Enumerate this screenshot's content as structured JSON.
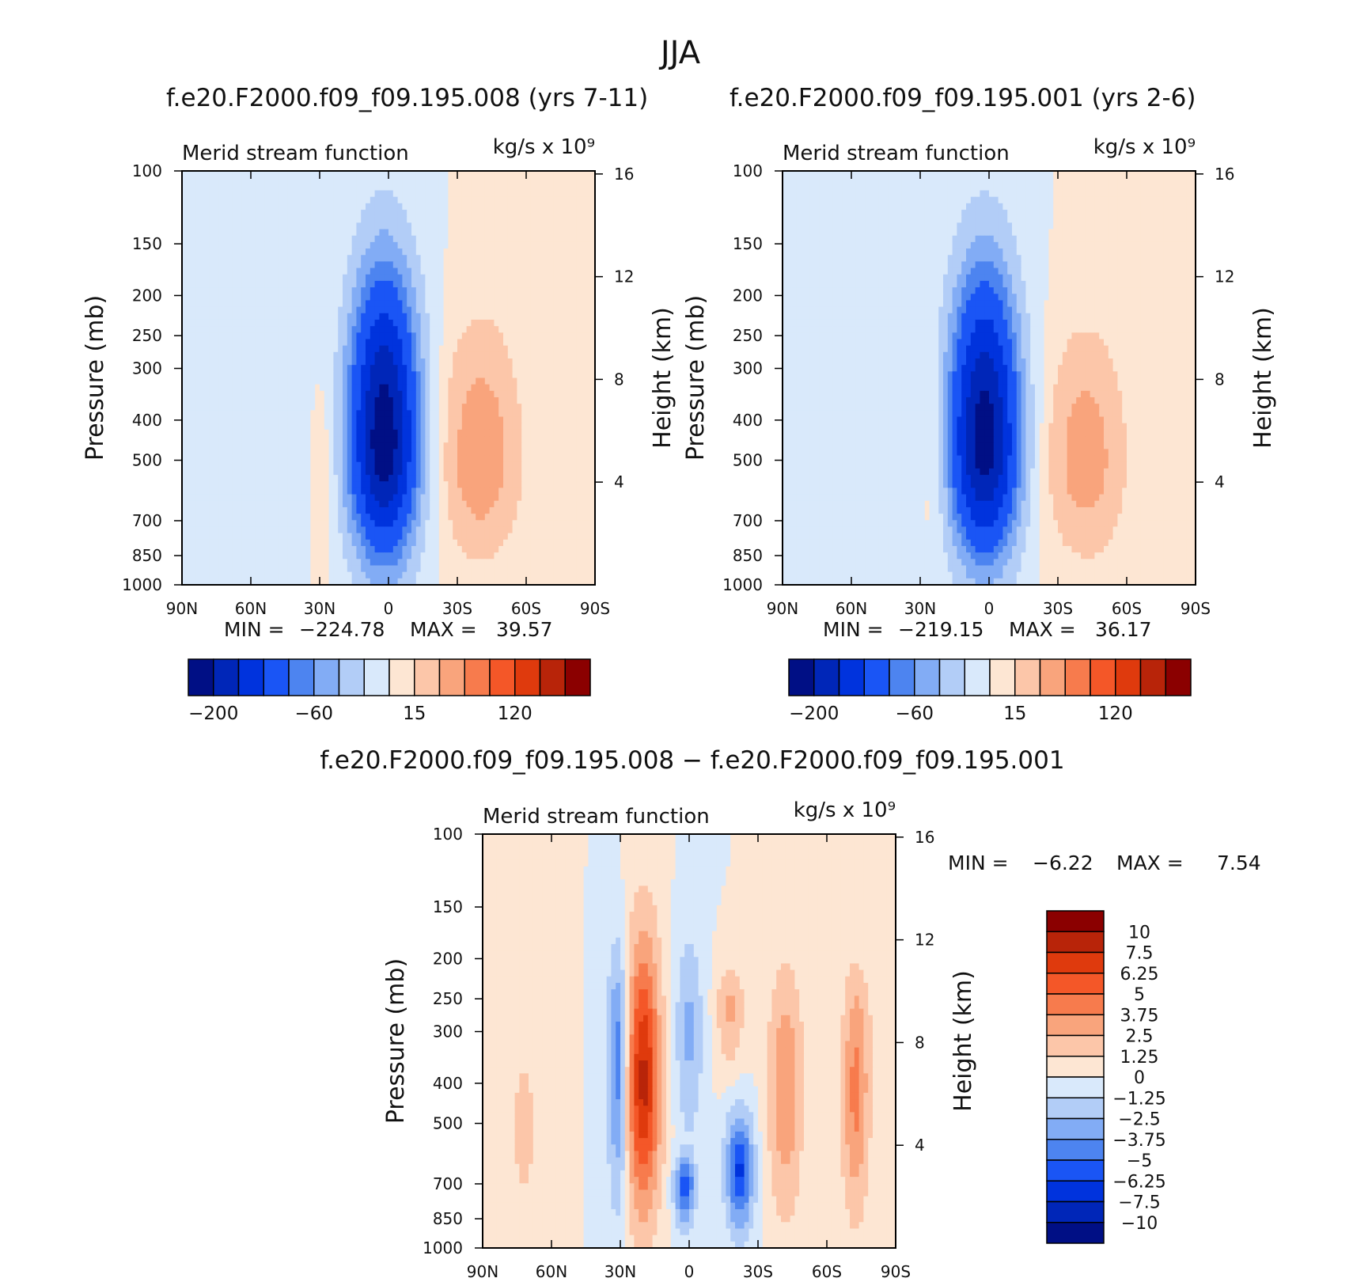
{
  "figure_title": "JJA",
  "colors": {
    "blue_scale": [
      "#000f85",
      "#0026b8",
      "#0033dd",
      "#1a55f5",
      "#4d84f0",
      "#82acf5",
      "#b2cdf7",
      "#d9e9fb"
    ],
    "red_scale": [
      "#fde6d3",
      "#fcc6a9",
      "#f9a47c",
      "#f77b4d",
      "#f45728",
      "#df3a0d",
      "#b82409",
      "#8b0000"
    ]
  },
  "chart_data": [
    {
      "id": "panel-008",
      "type": "heatmap",
      "title": "f.e20.F2000.f09_f09.195.008 (yrs 7-11)",
      "subtitle": "Merid stream function",
      "units": "kg/s x 10⁹",
      "xlabel": "",
      "ylabel": "Pressure (mb)",
      "y2label": "Height (km)",
      "x_ticks": [
        "90N",
        "60N",
        "30N",
        "0",
        "30S",
        "60S",
        "90S"
      ],
      "y_ticks": [
        100,
        150,
        200,
        250,
        300,
        400,
        500,
        700,
        850,
        1000
      ],
      "y2_ticks": [
        4,
        8,
        12,
        16
      ],
      "ylim": [
        1000,
        100
      ],
      "y_scale": "log",
      "min": -224.78,
      "max": 39.57,
      "min_label": "MIN =",
      "max_label": "MAX =",
      "min_text": "−224.78",
      "max_text": "39.57",
      "colorbar_labels": [
        "−200",
        "−60",
        "15",
        "120"
      ],
      "features": [
        {
          "kind": "neg",
          "lat": 2,
          "p": 450,
          "peak": -224.78,
          "w": 10,
          "p_top": 150,
          "p_bot": 960
        },
        {
          "kind": "neg",
          "lat": 52,
          "p": 400,
          "peak": -12,
          "w": 10,
          "p_top": 130,
          "p_bot": 950
        },
        {
          "kind": "pos",
          "lat": -40,
          "p": 500,
          "peak": 39.57,
          "w": 12,
          "p_top": 200,
          "p_bot": 950
        },
        {
          "kind": "pos",
          "lat": 28,
          "p": 500,
          "peak": 12,
          "w": 4,
          "p_top": 280,
          "p_bot": 950
        }
      ]
    },
    {
      "id": "panel-001",
      "type": "heatmap",
      "title": "f.e20.F2000.f09_f09.195.001 (yrs 2-6)",
      "subtitle": "Merid stream function",
      "units": "kg/s x 10⁹",
      "xlabel": "",
      "ylabel": "Pressure (mb)",
      "y2label": "Height (km)",
      "x_ticks": [
        "90N",
        "60N",
        "30N",
        "0",
        "30S",
        "60S",
        "90S"
      ],
      "y_ticks": [
        100,
        150,
        200,
        250,
        300,
        400,
        500,
        700,
        850,
        1000
      ],
      "y2_ticks": [
        4,
        8,
        12,
        16
      ],
      "ylim": [
        1000,
        100
      ],
      "y_scale": "log",
      "min": -219.15,
      "max": 36.17,
      "min_label": "MIN =",
      "max_label": "MAX =",
      "min_text": "−219.15",
      "max_text": "36.17",
      "colorbar_labels": [
        "−200",
        "−60",
        "15",
        "120"
      ],
      "features": [
        {
          "kind": "neg",
          "lat": 2,
          "p": 450,
          "peak": -219.15,
          "w": 10,
          "p_top": 150,
          "p_bot": 960
        },
        {
          "kind": "neg",
          "lat": 52,
          "p": 400,
          "peak": -12,
          "w": 10,
          "p_top": 130,
          "p_bot": 950
        },
        {
          "kind": "pos",
          "lat": -42,
          "p": 500,
          "peak": 36.17,
          "w": 12,
          "p_top": 210,
          "p_bot": 950
        },
        {
          "kind": "pos",
          "lat": 24,
          "p": 500,
          "peak": 12,
          "w": 4,
          "p_top": 280,
          "p_bot": 950
        }
      ]
    },
    {
      "id": "panel-diff",
      "type": "heatmap",
      "title": "f.e20.F2000.f09_f09.195.008 − f.e20.F2000.f09_f09.195.001",
      "subtitle": "Merid stream function",
      "units": "kg/s x 10⁹",
      "xlabel": "",
      "ylabel": "Pressure (mb)",
      "y2label": "Height (km)",
      "x_ticks": [
        "90N",
        "60N",
        "30N",
        "0",
        "30S",
        "60S",
        "90S"
      ],
      "y_ticks": [
        100,
        150,
        200,
        250,
        300,
        400,
        500,
        700,
        850,
        1000
      ],
      "y2_ticks": [
        4,
        8,
        12,
        16
      ],
      "ylim": [
        1000,
        100
      ],
      "y_scale": "log",
      "min": -6.22,
      "max": 7.54,
      "min_label": "MIN =",
      "max_label": "MAX =",
      "min_text": "−6.22",
      "max_text": "7.54",
      "colorbar_labels": [
        "10",
        "7.5",
        "6.25",
        "5",
        "3.75",
        "2.5",
        "1.25",
        "0",
        "−1.25",
        "−2.5",
        "−3.75",
        "−5",
        "−6.25",
        "−7.5",
        "−10"
      ],
      "features": [
        {
          "kind": "pos",
          "lat": 20,
          "p": 400,
          "peak": 7.54,
          "w": 5,
          "p_top": 150,
          "p_bot": 950
        },
        {
          "kind": "neg",
          "lat": 31,
          "p": 350,
          "peak": -4.5,
          "w": 3,
          "p_top": 170,
          "p_bot": 900
        },
        {
          "kind": "neg",
          "lat": -22,
          "p": 650,
          "peak": -6.22,
          "w": 4,
          "p_top": 450,
          "p_bot": 950
        },
        {
          "kind": "neg",
          "lat": 2,
          "p": 700,
          "peak": -5.5,
          "w": 3,
          "p_top": 600,
          "p_bot": 900
        },
        {
          "kind": "neg",
          "lat": 0,
          "p": 300,
          "peak": -2.5,
          "w": 4,
          "p_top": 160,
          "p_bot": 600
        },
        {
          "kind": "pos",
          "lat": -42,
          "p": 400,
          "peak": 3.5,
          "w": 5,
          "p_top": 190,
          "p_bot": 950
        },
        {
          "kind": "pos",
          "lat": -72,
          "p": 450,
          "peak": 2.7,
          "w": 4,
          "p_top": 200,
          "p_bot": 950
        },
        {
          "kind": "pos",
          "lat": -18,
          "p": 260,
          "peak": 2.5,
          "w": 4,
          "p_top": 200,
          "p_bot": 380
        },
        {
          "kind": "pos",
          "lat": -74,
          "p": 300,
          "peak": 1.5,
          "w": 4,
          "p_top": 200,
          "p_bot": 900
        },
        {
          "kind": "pos",
          "lat": 72,
          "p": 500,
          "peak": 1.5,
          "w": 4,
          "p_top": 300,
          "p_bot": 950
        }
      ]
    }
  ]
}
